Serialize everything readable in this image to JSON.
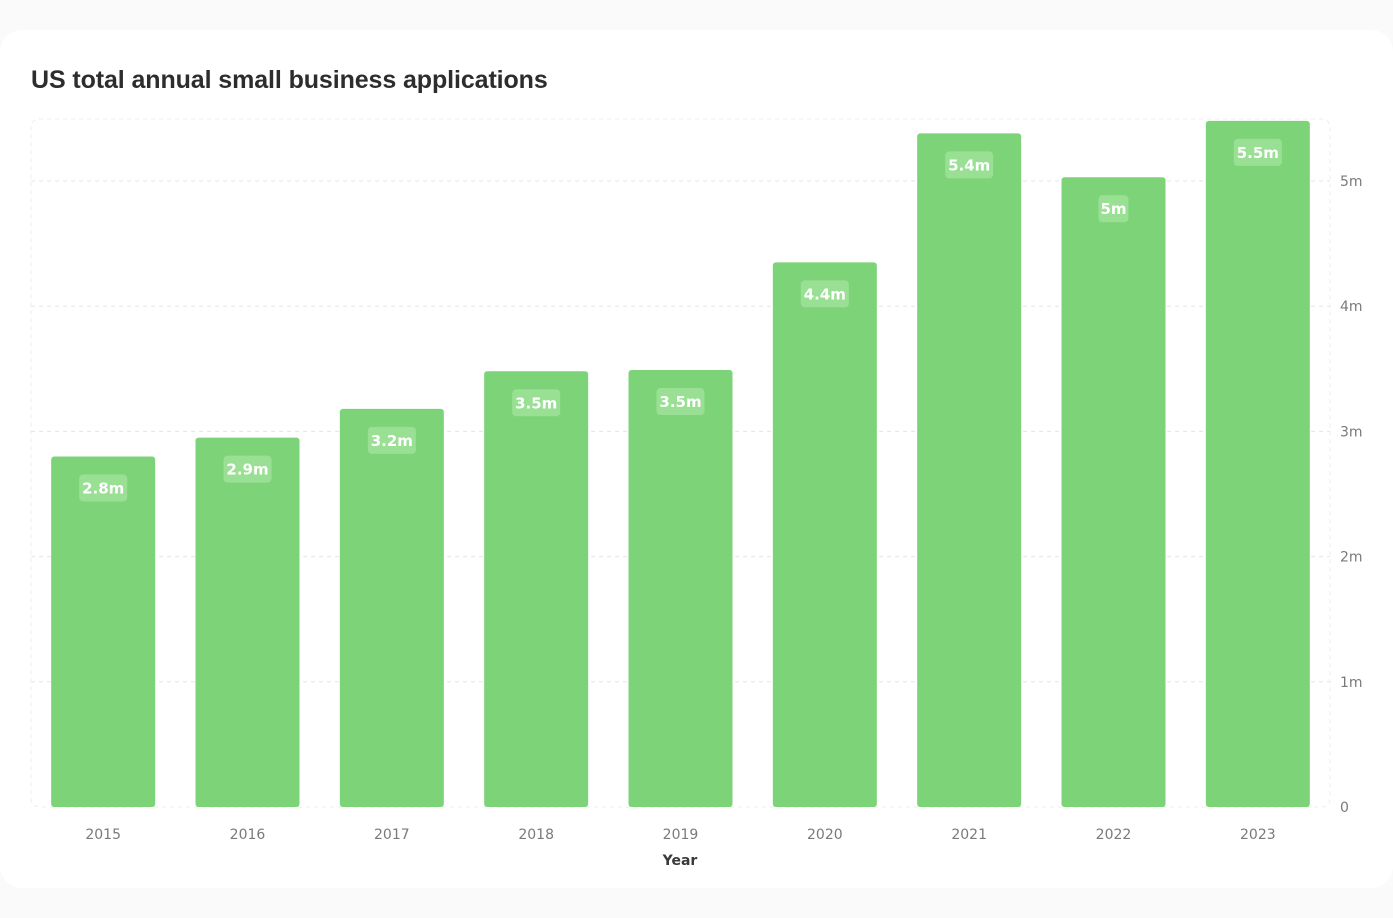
{
  "chart_data": {
    "type": "bar",
    "title": "US total annual small business applications",
    "xlabel": "Year",
    "ylabel": "",
    "categories": [
      "2015",
      "2016",
      "2017",
      "2018",
      "2019",
      "2020",
      "2021",
      "2022",
      "2023"
    ],
    "values": [
      2.8,
      2.95,
      3.18,
      3.48,
      3.49,
      4.35,
      5.38,
      5.03,
      5.48
    ],
    "data_labels": [
      "2.8m",
      "2.9m",
      "3.2m",
      "3.5m",
      "3.5m",
      "4.4m",
      "5.4m",
      "5m",
      "5.5m"
    ],
    "ylim": [
      0,
      5.5
    ],
    "yticks": [
      0,
      1,
      2,
      3,
      4,
      5
    ],
    "ytick_labels": [
      "0",
      "1m",
      "2m",
      "3m",
      "4m",
      "5m"
    ],
    "y_axis_position": "right",
    "grid": true,
    "legend": "none",
    "colors": {
      "bar": "#7dd377",
      "label_bg": "#9ae094",
      "grid": "#e6e6e6",
      "tick_text": "#7a7a7a",
      "title": "#2d2d2d"
    }
  }
}
